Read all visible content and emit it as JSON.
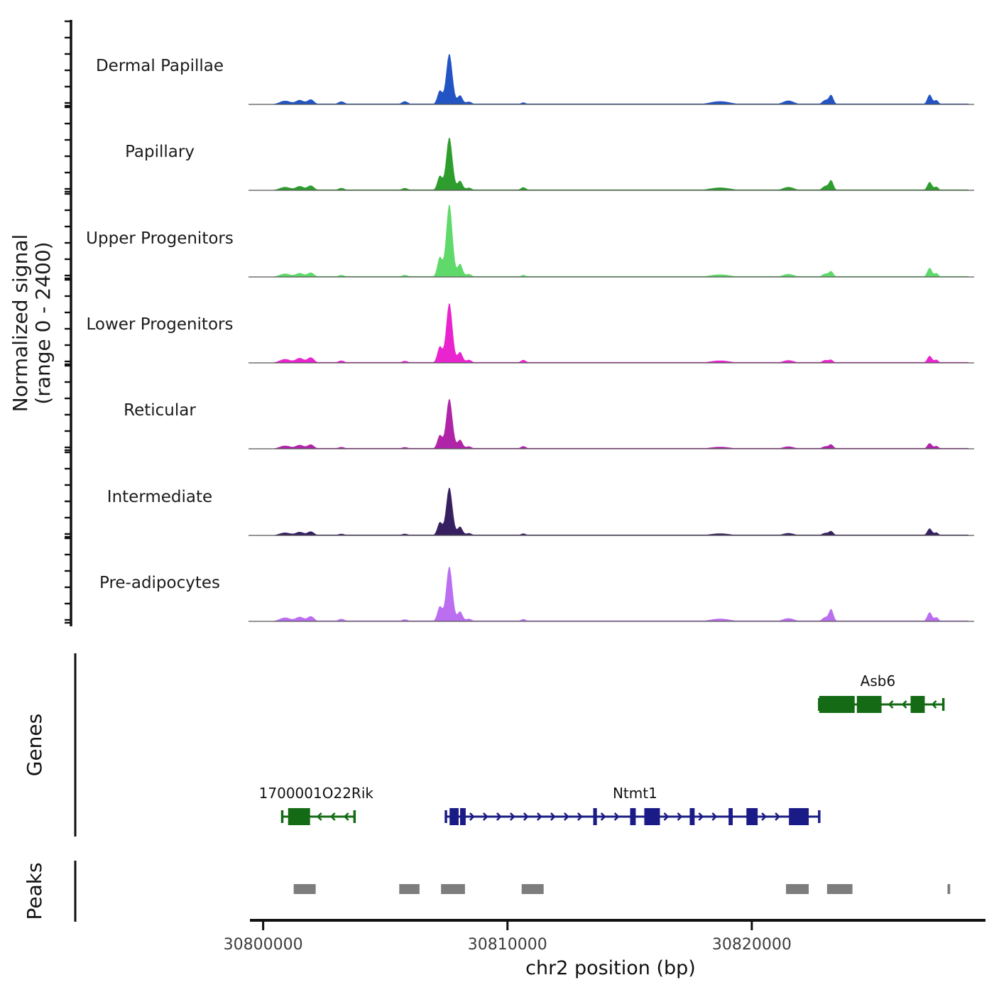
{
  "y_axis": {
    "label_line1": "Normalized signal",
    "label_line2": "(range 0 - 2400)",
    "range": [
      0,
      2400
    ]
  },
  "x_axis": {
    "label": "chr2 position (bp)",
    "ticks": [
      {
        "bp": 30800000,
        "label": "30800000"
      },
      {
        "bp": 30810000,
        "label": "30810000"
      },
      {
        "bp": 30820000,
        "label": "30820000"
      }
    ],
    "range_bp": [
      30799400,
      30829100
    ]
  },
  "sections": {
    "genes_label": "Genes",
    "peaks_label": "Peaks"
  },
  "chart_data": {
    "type": "area",
    "x_unit": "chr2 position (bp)",
    "x_range": [
      30799400,
      30829100
    ],
    "y_range_per_track": [
      0,
      2400
    ],
    "grid": false,
    "bump_centers_bp": [
      30800900,
      30801500,
      30801950,
      30803200,
      30805800,
      30807230,
      30807620,
      30808060,
      30808420,
      30810650,
      30818700,
      30821500,
      30823000,
      30823250,
      30827280,
      30827560
    ],
    "bump_widths_bp": [
      500,
      350,
      300,
      300,
      280,
      220,
      280,
      220,
      260,
      240,
      900,
      500,
      260,
      200,
      210,
      180
    ],
    "baseline_floor_value": 24,
    "baseline_floor_range_bp": [
      30800500,
      30828900
    ],
    "tracks": [
      {
        "label": "Dermal Papillae",
        "color": "#2254c4",
        "values": [
          110,
          130,
          150,
          90,
          95,
          415,
          1540,
          275,
          85,
          60,
          95,
          115,
          130,
          280,
          300,
          130
        ]
      },
      {
        "label": "Papillary",
        "color": "#2d9e2d",
        "values": [
          100,
          125,
          145,
          70,
          70,
          435,
          1610,
          290,
          80,
          95,
          85,
          100,
          130,
          300,
          255,
          110
        ]
      },
      {
        "label": "Upper Progenitors",
        "color": "#5ed96a",
        "values": [
          100,
          115,
          130,
          60,
          60,
          595,
          2210,
          400,
          90,
          60,
          75,
          90,
          100,
          170,
          280,
          115
        ]
      },
      {
        "label": "Lower Progenitors",
        "color": "#e923cd",
        "values": [
          115,
          145,
          165,
          70,
          60,
          490,
          1820,
          330,
          95,
          90,
          70,
          80,
          85,
          90,
          215,
          95
        ]
      },
      {
        "label": "Reticular",
        "color": "#b024a8",
        "values": [
          95,
          115,
          130,
          55,
          50,
          410,
          1520,
          275,
          75,
          80,
          60,
          70,
          75,
          130,
          170,
          85
        ]
      },
      {
        "label": "Intermediate",
        "color": "#372060",
        "values": [
          85,
          105,
          120,
          50,
          50,
          395,
          1460,
          265,
          70,
          60,
          60,
          70,
          75,
          130,
          215,
          90
        ]
      },
      {
        "label": "Pre-adipocytes",
        "color": "#bb6ef0",
        "values": [
          115,
          135,
          155,
          75,
          60,
          450,
          1670,
          300,
          80,
          70,
          80,
          95,
          125,
          365,
          280,
          125
        ]
      }
    ],
    "genes": [
      {
        "name": "Asb6",
        "color": "#156b15",
        "strand": "-",
        "row": 0,
        "start_bp": 30822760,
        "end_bp": 30827840,
        "label_bp": 30825160,
        "exons_bp": [
          [
            30822760,
            30824210
          ],
          [
            30824300,
            30825310
          ],
          [
            30826500,
            30827080
          ]
        ]
      },
      {
        "name": "1700001O22Rik",
        "color": "#156b15",
        "strand": "-",
        "row": 1,
        "start_bp": 30800780,
        "end_bp": 30803740,
        "label_bp": 30802170,
        "exons_bp": [
          [
            30801020,
            30801920
          ]
        ]
      },
      {
        "name": "Ntmt1",
        "color": "#1b1b87",
        "strand": "+",
        "row": 1,
        "start_bp": 30807480,
        "end_bp": 30822760,
        "label_bp": 30815220,
        "exons_bp": [
          [
            30807630,
            30808000
          ],
          [
            30808060,
            30808290
          ],
          [
            30813510,
            30813660
          ],
          [
            30815020,
            30815250
          ],
          [
            30815600,
            30816240
          ],
          [
            30817460,
            30817660
          ],
          [
            30819050,
            30819220
          ],
          [
            30819780,
            30820240
          ],
          [
            30821520,
            30822330
          ]
        ]
      }
    ],
    "peaks_bp": [
      [
        30801250,
        30802150
      ],
      [
        30805570,
        30806400
      ],
      [
        30807280,
        30808260
      ],
      [
        30810580,
        30811480
      ],
      [
        30821400,
        30822330
      ],
      [
        30823080,
        30824120
      ],
      [
        30828010,
        30828120
      ]
    ],
    "peaks_color": "#7d7d7d"
  }
}
